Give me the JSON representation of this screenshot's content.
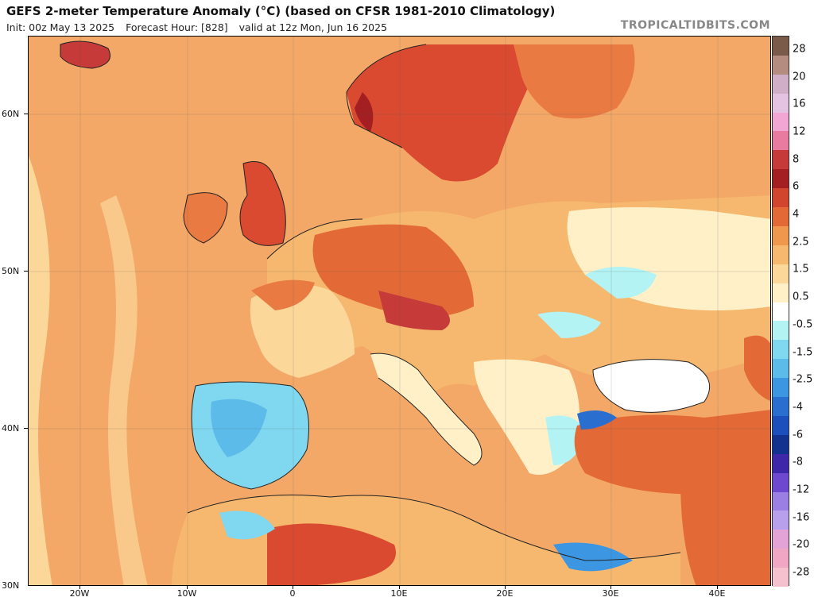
{
  "header": {
    "title": "GEFS 2-meter Temperature Anomaly (°C) (based on CFSR 1981-2010 Climatology)",
    "init": "Init: 00z May 13 2025",
    "forecast_hour": "Forecast Hour: [828]",
    "valid": "valid at 12z Mon, Jun 16 2025",
    "brand": "TROPICALTIDBITS.COM"
  },
  "axes": {
    "lat_labels": [
      "60N",
      "50N",
      "40N",
      "30N"
    ],
    "lon_labels": [
      "20W",
      "10W",
      "0",
      "10E",
      "20E",
      "30E",
      "40E"
    ]
  },
  "colorbar": {
    "labels": [
      "28",
      "20",
      "16",
      "12",
      "8",
      "6",
      "4",
      "2.5",
      "1.5",
      "0.5",
      "-0.5",
      "-1.5",
      "-2.5",
      "-4",
      "-6",
      "-8",
      "-12",
      "-16",
      "-20",
      "-28"
    ],
    "colors": [
      "#7a5a48",
      "#b48d80",
      "#d0aec8",
      "#e3c2e2",
      "#f2a6d3",
      "#e97aa0",
      "#c63a3a",
      "#a31f22",
      "#d1452e",
      "#e36a36",
      "#f0974e",
      "#f6b86e",
      "#fbd79a",
      "#fff0c8",
      "#ffffff",
      "#b3f3f3",
      "#7fd7f0",
      "#5cbbe9",
      "#3c96e2",
      "#2a6fd0",
      "#1c4fbb",
      "#13318f",
      "#3e27a8",
      "#6e49cf",
      "#9b7fe3",
      "#b8a0ec",
      "#e4a3d6",
      "#efa7c3",
      "#f5c1cf"
    ]
  },
  "legend_colors": {
    "land_warm_strong": "#d94a30",
    "land_warm": "#e97a42",
    "sea_warm": "#f3a868",
    "neutral": "#ffffff",
    "cool": "#6cc3ec"
  }
}
